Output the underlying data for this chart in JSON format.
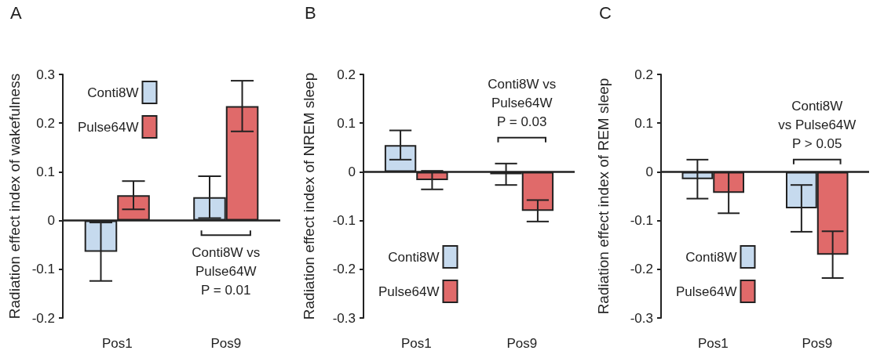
{
  "chart_data": [
    {
      "type": "bar",
      "title": "A",
      "ylabel": "Radiation effect index of wakefulness",
      "categories": [
        "Pos1",
        "Pos9"
      ],
      "ylim": [
        -0.2,
        0.3
      ],
      "yticks": [
        -0.2,
        -0.1,
        0,
        0.1,
        0.2,
        0.3
      ],
      "legend": "top left",
      "grid": false,
      "ref_lines": [
        {
          "axis": "y",
          "value": 0,
          "color": "#222222"
        }
      ],
      "annotations": [
        "Conti8W vs\nPulse64W\nP = 0.01"
      ],
      "series": [
        {
          "name": "Conti8W",
          "color": "#c6daee",
          "values": [
            -0.064,
            0.048
          ],
          "errors": [
            0.06,
            0.043
          ]
        },
        {
          "name": "Pulse64W",
          "color": "#e06a6a",
          "values": [
            0.052,
            0.235
          ],
          "errors": [
            0.029,
            0.052
          ]
        }
      ]
    },
    {
      "type": "bar",
      "title": "B",
      "ylabel": "Radiation effect index of NREM sleep",
      "categories": [
        "Pos1",
        "Pos9"
      ],
      "ylim": [
        -0.3,
        0.2
      ],
      "yticks": [
        -0.3,
        -0.2,
        -0.1,
        0,
        0.1,
        0.2
      ],
      "legend": "bottom left",
      "grid": false,
      "ref_lines": [
        {
          "axis": "y",
          "value": 0,
          "color": "#222222"
        }
      ],
      "annotations": [
        "Conti8W vs\nPulse64W\nP = 0.03"
      ],
      "series": [
        {
          "name": "Conti8W",
          "color": "#c6daee",
          "values": [
            0.055,
            -0.005
          ],
          "errors": [
            0.03,
            0.022
          ]
        },
        {
          "name": "Pulse64W",
          "color": "#e06a6a",
          "values": [
            -0.017,
            -0.08
          ],
          "errors": [
            0.019,
            0.022
          ]
        }
      ]
    },
    {
      "type": "bar",
      "title": "C",
      "ylabel": "Radiation effect index of REM sleep",
      "categories": [
        "Pos1",
        "Pos9"
      ],
      "ylim": [
        -0.3,
        0.2
      ],
      "yticks": [
        -0.3,
        -0.2,
        -0.1,
        0,
        0.1,
        0.2
      ],
      "legend": "bottom left",
      "grid": false,
      "ref_lines": [
        {
          "axis": "y",
          "value": 0,
          "color": "#222222"
        }
      ],
      "annotations": [
        "Conti8W\nvs Pulse64W\nP > 0.05"
      ],
      "series": [
        {
          "name": "Conti8W",
          "color": "#c6daee",
          "values": [
            -0.015,
            -0.075
          ],
          "errors": [
            0.04,
            0.048
          ]
        },
        {
          "name": "Pulse64W",
          "color": "#e06a6a",
          "values": [
            -0.043,
            -0.17
          ],
          "errors": [
            0.042,
            0.048
          ]
        }
      ]
    }
  ]
}
